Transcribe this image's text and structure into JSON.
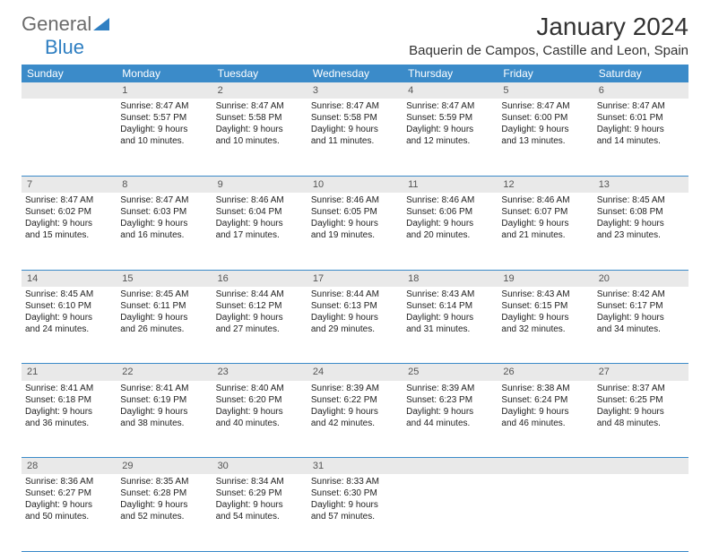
{
  "logo": {
    "part1": "General",
    "part2": "Blue"
  },
  "title": "January 2024",
  "location": "Baquerin de Campos, Castille and Leon, Spain",
  "header_bg": "#3b8bc9",
  "header_fg": "#ffffff",
  "daynum_bg": "#e9e9e9",
  "border_color": "#3b8bc9",
  "weekdays": [
    "Sunday",
    "Monday",
    "Tuesday",
    "Wednesday",
    "Thursday",
    "Friday",
    "Saturday"
  ],
  "weeks": [
    {
      "nums": [
        "",
        "1",
        "2",
        "3",
        "4",
        "5",
        "6"
      ],
      "cells": [
        {},
        {
          "sr": "Sunrise: 8:47 AM",
          "ss": "Sunset: 5:57 PM",
          "d1": "Daylight: 9 hours",
          "d2": "and 10 minutes."
        },
        {
          "sr": "Sunrise: 8:47 AM",
          "ss": "Sunset: 5:58 PM",
          "d1": "Daylight: 9 hours",
          "d2": "and 10 minutes."
        },
        {
          "sr": "Sunrise: 8:47 AM",
          "ss": "Sunset: 5:58 PM",
          "d1": "Daylight: 9 hours",
          "d2": "and 11 minutes."
        },
        {
          "sr": "Sunrise: 8:47 AM",
          "ss": "Sunset: 5:59 PM",
          "d1": "Daylight: 9 hours",
          "d2": "and 12 minutes."
        },
        {
          "sr": "Sunrise: 8:47 AM",
          "ss": "Sunset: 6:00 PM",
          "d1": "Daylight: 9 hours",
          "d2": "and 13 minutes."
        },
        {
          "sr": "Sunrise: 8:47 AM",
          "ss": "Sunset: 6:01 PM",
          "d1": "Daylight: 9 hours",
          "d2": "and 14 minutes."
        }
      ]
    },
    {
      "nums": [
        "7",
        "8",
        "9",
        "10",
        "11",
        "12",
        "13"
      ],
      "cells": [
        {
          "sr": "Sunrise: 8:47 AM",
          "ss": "Sunset: 6:02 PM",
          "d1": "Daylight: 9 hours",
          "d2": "and 15 minutes."
        },
        {
          "sr": "Sunrise: 8:47 AM",
          "ss": "Sunset: 6:03 PM",
          "d1": "Daylight: 9 hours",
          "d2": "and 16 minutes."
        },
        {
          "sr": "Sunrise: 8:46 AM",
          "ss": "Sunset: 6:04 PM",
          "d1": "Daylight: 9 hours",
          "d2": "and 17 minutes."
        },
        {
          "sr": "Sunrise: 8:46 AM",
          "ss": "Sunset: 6:05 PM",
          "d1": "Daylight: 9 hours",
          "d2": "and 19 minutes."
        },
        {
          "sr": "Sunrise: 8:46 AM",
          "ss": "Sunset: 6:06 PM",
          "d1": "Daylight: 9 hours",
          "d2": "and 20 minutes."
        },
        {
          "sr": "Sunrise: 8:46 AM",
          "ss": "Sunset: 6:07 PM",
          "d1": "Daylight: 9 hours",
          "d2": "and 21 minutes."
        },
        {
          "sr": "Sunrise: 8:45 AM",
          "ss": "Sunset: 6:08 PM",
          "d1": "Daylight: 9 hours",
          "d2": "and 23 minutes."
        }
      ]
    },
    {
      "nums": [
        "14",
        "15",
        "16",
        "17",
        "18",
        "19",
        "20"
      ],
      "cells": [
        {
          "sr": "Sunrise: 8:45 AM",
          "ss": "Sunset: 6:10 PM",
          "d1": "Daylight: 9 hours",
          "d2": "and 24 minutes."
        },
        {
          "sr": "Sunrise: 8:45 AM",
          "ss": "Sunset: 6:11 PM",
          "d1": "Daylight: 9 hours",
          "d2": "and 26 minutes."
        },
        {
          "sr": "Sunrise: 8:44 AM",
          "ss": "Sunset: 6:12 PM",
          "d1": "Daylight: 9 hours",
          "d2": "and 27 minutes."
        },
        {
          "sr": "Sunrise: 8:44 AM",
          "ss": "Sunset: 6:13 PM",
          "d1": "Daylight: 9 hours",
          "d2": "and 29 minutes."
        },
        {
          "sr": "Sunrise: 8:43 AM",
          "ss": "Sunset: 6:14 PM",
          "d1": "Daylight: 9 hours",
          "d2": "and 31 minutes."
        },
        {
          "sr": "Sunrise: 8:43 AM",
          "ss": "Sunset: 6:15 PM",
          "d1": "Daylight: 9 hours",
          "d2": "and 32 minutes."
        },
        {
          "sr": "Sunrise: 8:42 AM",
          "ss": "Sunset: 6:17 PM",
          "d1": "Daylight: 9 hours",
          "d2": "and 34 minutes."
        }
      ]
    },
    {
      "nums": [
        "21",
        "22",
        "23",
        "24",
        "25",
        "26",
        "27"
      ],
      "cells": [
        {
          "sr": "Sunrise: 8:41 AM",
          "ss": "Sunset: 6:18 PM",
          "d1": "Daylight: 9 hours",
          "d2": "and 36 minutes."
        },
        {
          "sr": "Sunrise: 8:41 AM",
          "ss": "Sunset: 6:19 PM",
          "d1": "Daylight: 9 hours",
          "d2": "and 38 minutes."
        },
        {
          "sr": "Sunrise: 8:40 AM",
          "ss": "Sunset: 6:20 PM",
          "d1": "Daylight: 9 hours",
          "d2": "and 40 minutes."
        },
        {
          "sr": "Sunrise: 8:39 AM",
          "ss": "Sunset: 6:22 PM",
          "d1": "Daylight: 9 hours",
          "d2": "and 42 minutes."
        },
        {
          "sr": "Sunrise: 8:39 AM",
          "ss": "Sunset: 6:23 PM",
          "d1": "Daylight: 9 hours",
          "d2": "and 44 minutes."
        },
        {
          "sr": "Sunrise: 8:38 AM",
          "ss": "Sunset: 6:24 PM",
          "d1": "Daylight: 9 hours",
          "d2": "and 46 minutes."
        },
        {
          "sr": "Sunrise: 8:37 AM",
          "ss": "Sunset: 6:25 PM",
          "d1": "Daylight: 9 hours",
          "d2": "and 48 minutes."
        }
      ]
    },
    {
      "nums": [
        "28",
        "29",
        "30",
        "31",
        "",
        "",
        ""
      ],
      "cells": [
        {
          "sr": "Sunrise: 8:36 AM",
          "ss": "Sunset: 6:27 PM",
          "d1": "Daylight: 9 hours",
          "d2": "and 50 minutes."
        },
        {
          "sr": "Sunrise: 8:35 AM",
          "ss": "Sunset: 6:28 PM",
          "d1": "Daylight: 9 hours",
          "d2": "and 52 minutes."
        },
        {
          "sr": "Sunrise: 8:34 AM",
          "ss": "Sunset: 6:29 PM",
          "d1": "Daylight: 9 hours",
          "d2": "and 54 minutes."
        },
        {
          "sr": "Sunrise: 8:33 AM",
          "ss": "Sunset: 6:30 PM",
          "d1": "Daylight: 9 hours",
          "d2": "and 57 minutes."
        },
        {},
        {},
        {}
      ]
    }
  ]
}
